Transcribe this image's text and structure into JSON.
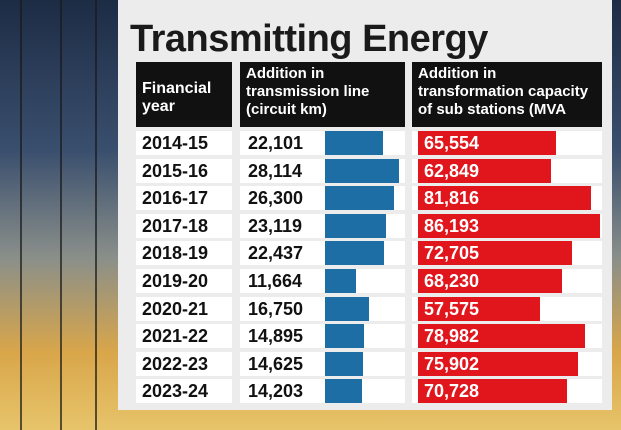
{
  "chart_data": {
    "type": "table-bar",
    "title": "Transmitting Energy",
    "category_label": "Financial year",
    "categories": [
      "2014-15",
      "2015-16",
      "2016-17",
      "2017-18",
      "2018-19",
      "2019-20",
      "2020-21",
      "2021-22",
      "2022-23",
      "2023-24"
    ],
    "series": [
      {
        "name": "Addition in transmission line (circuit km)",
        "color": "#1c6ea4",
        "values": [
          22101,
          28114,
          26300,
          23119,
          22437,
          11664,
          16750,
          14895,
          14625,
          14203
        ],
        "value_labels": [
          "22,101",
          "28,114",
          "26,300",
          "23,119",
          "22,437",
          "11,664",
          "16,750",
          "14,895",
          "14,625",
          "14,203"
        ]
      },
      {
        "name": "Addition in transformation capacity of sub stations (MVA",
        "color": "#e0161c",
        "values": [
          65554,
          62849,
          81816,
          86193,
          72705,
          68230,
          57575,
          78982,
          75902,
          70728
        ],
        "value_labels": [
          "65,554",
          "62,849",
          "81,816",
          "86,193",
          "72,705",
          "68,230",
          "57,575",
          "78,982",
          "75,902",
          "70,728"
        ]
      }
    ]
  }
}
